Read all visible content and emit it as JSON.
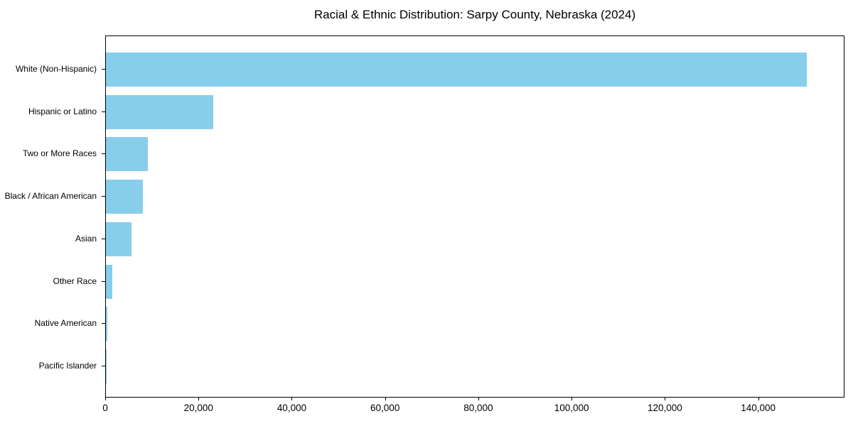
{
  "chart_data": {
    "type": "bar",
    "orientation": "horizontal",
    "title": "Racial & Ethnic Distribution: Sarpy County, Nebraska (2024)",
    "categories": [
      "White (Non-Hispanic)",
      "Hispanic or Latino",
      "Two or More Races",
      "Black / African American",
      "Asian",
      "Other Race",
      "Native American",
      "Pacific Islander"
    ],
    "values": [
      150500,
      23000,
      9000,
      7900,
      5500,
      1300,
      250,
      100
    ],
    "xlabel": "",
    "ylabel": "",
    "xlim": [
      0,
      158500
    ],
    "x_ticks": [
      0,
      20000,
      40000,
      60000,
      80000,
      100000,
      120000,
      140000
    ],
    "x_tick_labels": [
      "0",
      "20,000",
      "40,000",
      "60,000",
      "80,000",
      "100,000",
      "120,000",
      "140,000"
    ],
    "bar_color": "#87CEEB",
    "axis_color": "#000000",
    "text_color": "#000000",
    "grid": false,
    "legend_position": "none",
    "largest_bar_first": true
  }
}
